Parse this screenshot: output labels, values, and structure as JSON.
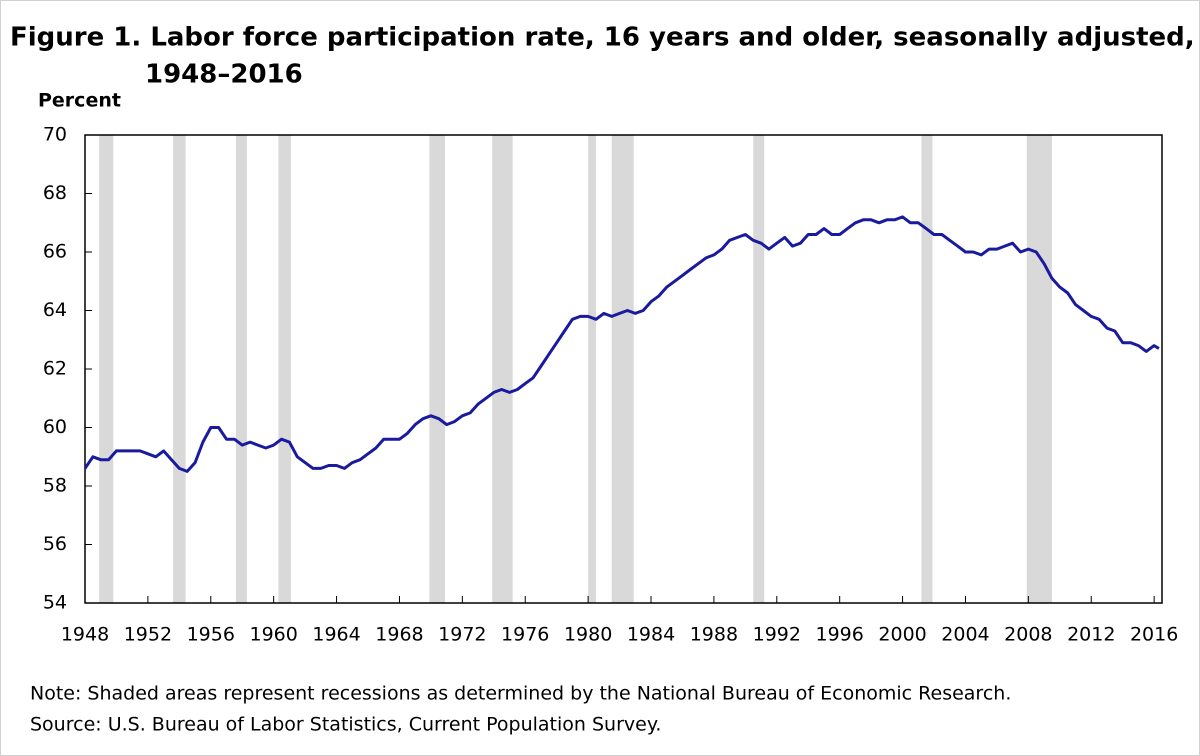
{
  "chart_data": {
    "type": "line",
    "title": [
      "Figure 1. Labor force participation rate, 16 years and older, seasonally adjusted,",
      "1948–2016"
    ],
    "y_label": "Percent",
    "notes": [
      "Note:  Shaded areas represent recessions as determined by the National Bureau of Economic Research.",
      "Source: U.S. Bureau of Labor Statistics, Current Population Survey."
    ],
    "xlim": [
      1948,
      2016.5
    ],
    "xticks": [
      1948,
      1952,
      1956,
      1960,
      1964,
      1968,
      1972,
      1976,
      1980,
      1984,
      1988,
      1992,
      1996,
      2000,
      2004,
      2008,
      2012,
      2016
    ],
    "ylim": [
      54,
      70
    ],
    "yticks": [
      54,
      56,
      58,
      60,
      62,
      64,
      66,
      68,
      70
    ],
    "recession_color": "#d9d9d9",
    "recessions": [
      [
        1948.9,
        1949.8
      ],
      [
        1953.6,
        1954.4
      ],
      [
        1957.6,
        1958.3
      ],
      [
        1960.3,
        1961.1
      ],
      [
        1969.9,
        1970.9
      ],
      [
        1973.9,
        1975.2
      ],
      [
        1980.0,
        1980.5
      ],
      [
        1981.5,
        1982.9
      ],
      [
        1990.5,
        1991.2
      ],
      [
        2001.2,
        2001.9
      ],
      [
        2007.9,
        2009.5
      ]
    ],
    "series": [
      {
        "name": "Labor force participation rate",
        "color": "#1a1a9e",
        "x": [
          1948,
          1948.5,
          1949,
          1949.5,
          1950,
          1950.5,
          1951,
          1951.5,
          1952,
          1952.5,
          1953,
          1953.5,
          1954,
          1954.5,
          1955,
          1955.5,
          1956,
          1956.5,
          1957,
          1957.5,
          1958,
          1958.5,
          1959,
          1959.5,
          1960,
          1960.5,
          1961,
          1961.5,
          1962,
          1962.5,
          1963,
          1963.5,
          1964,
          1964.5,
          1965,
          1965.5,
          1966,
          1966.5,
          1967,
          1967.5,
          1968,
          1968.5,
          1969,
          1969.5,
          1970,
          1970.5,
          1971,
          1971.5,
          1972,
          1972.5,
          1973,
          1973.5,
          1974,
          1974.5,
          1975,
          1975.5,
          1976,
          1976.5,
          1977,
          1977.5,
          1978,
          1978.5,
          1979,
          1979.5,
          1980,
          1980.5,
          1981,
          1981.5,
          1982,
          1982.5,
          1983,
          1983.5,
          1984,
          1984.5,
          1985,
          1985.5,
          1986,
          1986.5,
          1987,
          1987.5,
          1988,
          1988.5,
          1989,
          1989.5,
          1990,
          1990.5,
          1991,
          1991.5,
          1992,
          1992.5,
          1993,
          1993.5,
          1994,
          1994.5,
          1995,
          1995.5,
          1996,
          1996.5,
          1997,
          1997.5,
          1998,
          1998.5,
          1999,
          1999.5,
          2000,
          2000.5,
          2001,
          2001.5,
          2002,
          2002.5,
          2003,
          2003.5,
          2004,
          2004.5,
          2005,
          2005.5,
          2006,
          2006.5,
          2007,
          2007.5,
          2008,
          2008.5,
          2009,
          2009.5,
          2010,
          2010.5,
          2011,
          2011.5,
          2012,
          2012.5,
          2013,
          2013.5,
          2014,
          2014.5,
          2015,
          2015.5,
          2016,
          2016.3
        ],
        "values": [
          58.6,
          59.0,
          58.9,
          58.9,
          59.2,
          59.2,
          59.2,
          59.2,
          59.1,
          59.0,
          59.2,
          58.9,
          58.6,
          58.5,
          58.8,
          59.5,
          60.0,
          60.0,
          59.6,
          59.6,
          59.4,
          59.5,
          59.4,
          59.3,
          59.4,
          59.6,
          59.5,
          59.0,
          58.8,
          58.6,
          58.6,
          58.7,
          58.7,
          58.6,
          58.8,
          58.9,
          59.1,
          59.3,
          59.6,
          59.6,
          59.6,
          59.8,
          60.1,
          60.3,
          60.4,
          60.3,
          60.1,
          60.2,
          60.4,
          60.5,
          60.8,
          61.0,
          61.2,
          61.3,
          61.2,
          61.3,
          61.5,
          61.7,
          62.1,
          62.5,
          62.9,
          63.3,
          63.7,
          63.8,
          63.8,
          63.7,
          63.9,
          63.8,
          63.9,
          64.0,
          63.9,
          64.0,
          64.3,
          64.5,
          64.8,
          65.0,
          65.2,
          65.4,
          65.6,
          65.8,
          65.9,
          66.1,
          66.4,
          66.5,
          66.6,
          66.4,
          66.3,
          66.1,
          66.3,
          66.5,
          66.2,
          66.3,
          66.6,
          66.6,
          66.8,
          66.6,
          66.6,
          66.8,
          67.0,
          67.1,
          67.1,
          67.0,
          67.1,
          67.1,
          67.2,
          67.0,
          67.0,
          66.8,
          66.6,
          66.6,
          66.4,
          66.2,
          66.0,
          66.0,
          65.9,
          66.1,
          66.1,
          66.2,
          66.3,
          66.0,
          66.1,
          66.0,
          65.6,
          65.1,
          64.8,
          64.6,
          64.2,
          64.0,
          63.8,
          63.7,
          63.4,
          63.3,
          62.9,
          62.9,
          62.8,
          62.6,
          62.8,
          62.7
        ]
      }
    ]
  }
}
